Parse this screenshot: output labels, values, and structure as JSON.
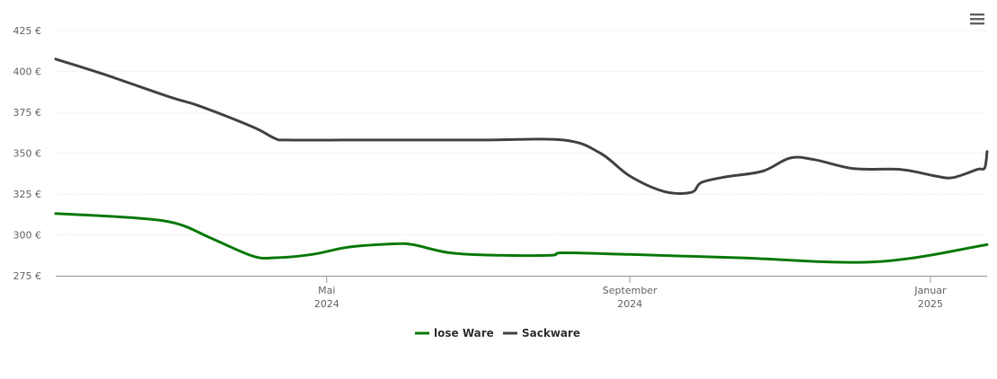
{
  "chart_data": {
    "type": "line",
    "title": "",
    "xlabel": "",
    "ylabel": "",
    "ylim": [
      275,
      425
    ],
    "yticks": [
      "275 €",
      "300 €",
      "325 €",
      "350 €",
      "375 €",
      "400 €",
      "425 €"
    ],
    "ytick_values": [
      275,
      300,
      325,
      350,
      375,
      400,
      425
    ],
    "xticks": [
      {
        "date": "2024-05-01",
        "month": "Mai",
        "year": "2024"
      },
      {
        "date": "2024-09-01",
        "month": "September",
        "year": "2024"
      },
      {
        "date": "2025-01-01",
        "month": "Januar",
        "year": "2025"
      }
    ],
    "xlim": [
      "2024-01-12",
      "2025-01-24"
    ],
    "grid": true,
    "legend_position": "bottom-center",
    "series": [
      {
        "name": "lose Ware",
        "color": "#0b7a0b",
        "points": [
          [
            "2024-01-12",
            313
          ],
          [
            "2024-02-12",
            310.5
          ],
          [
            "2024-03-01",
            307
          ],
          [
            "2024-03-15",
            298
          ],
          [
            "2024-04-01",
            287
          ],
          [
            "2024-04-10",
            286
          ],
          [
            "2024-04-25",
            288
          ],
          [
            "2024-05-10",
            292.5
          ],
          [
            "2024-05-28",
            294.5
          ],
          [
            "2024-06-05",
            294
          ],
          [
            "2024-06-20",
            289
          ],
          [
            "2024-07-10",
            287.5
          ],
          [
            "2024-07-31",
            287.5
          ],
          [
            "2024-08-05",
            289
          ],
          [
            "2024-09-01",
            288
          ],
          [
            "2024-10-15",
            286
          ],
          [
            "2024-12-10",
            283.5
          ],
          [
            "2025-01-24",
            294
          ]
        ]
      },
      {
        "name": "Sackware",
        "color": "#434348",
        "points": [
          [
            "2024-01-12",
            407.5
          ],
          [
            "2024-02-01",
            398
          ],
          [
            "2024-02-28",
            384
          ],
          [
            "2024-03-10",
            379
          ],
          [
            "2024-04-01",
            366
          ],
          [
            "2024-04-10",
            359
          ],
          [
            "2024-04-15",
            358
          ],
          [
            "2024-05-15",
            358
          ],
          [
            "2024-07-01",
            358
          ],
          [
            "2024-08-05",
            358
          ],
          [
            "2024-08-20",
            350
          ],
          [
            "2024-09-01",
            336
          ],
          [
            "2024-09-15",
            326.5
          ],
          [
            "2024-09-26",
            326
          ],
          [
            "2024-09-30",
            332
          ],
          [
            "2024-10-10",
            335.5
          ],
          [
            "2024-10-25",
            339
          ],
          [
            "2024-11-05",
            347
          ],
          [
            "2024-11-15",
            346
          ],
          [
            "2024-12-01",
            340.5
          ],
          [
            "2024-12-20",
            340
          ],
          [
            "2025-01-03",
            336
          ],
          [
            "2025-01-10",
            335
          ],
          [
            "2025-01-20",
            340
          ],
          [
            "2025-01-23",
            341
          ],
          [
            "2025-01-24",
            351
          ]
        ]
      }
    ]
  },
  "menu": {
    "icon": "hamburger-menu-icon"
  }
}
